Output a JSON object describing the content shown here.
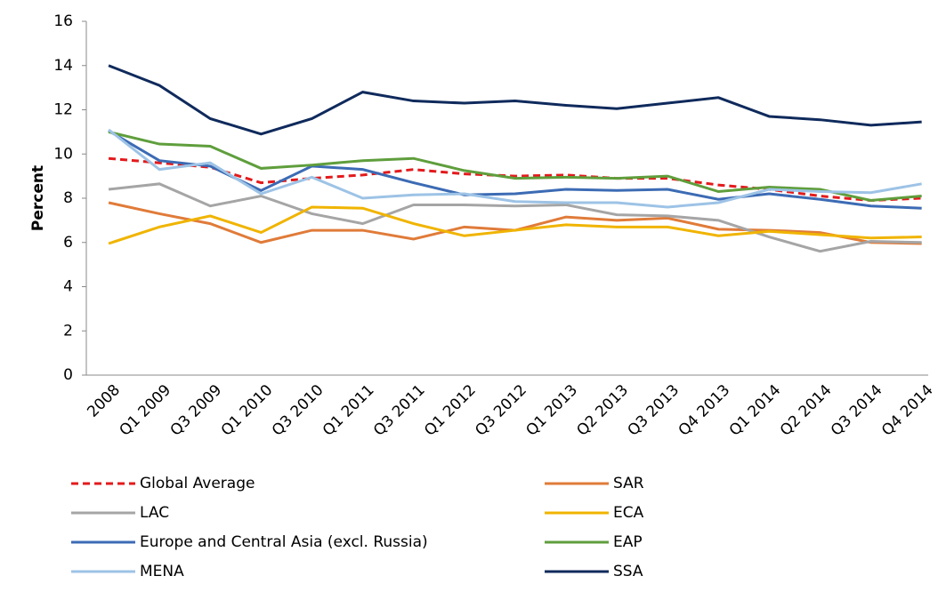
{
  "chart_data": {
    "type": "line",
    "y_label": "Percent",
    "categories": [
      "2008",
      "Q1 2009",
      "Q3 2009",
      "Q1 2010",
      "Q3 2010",
      "Q1 2011",
      "Q3 2011",
      "Q1 2012",
      "Q3 2012",
      "Q1 2013",
      "Q2 2013",
      "Q3 2013",
      "Q4 2013",
      "Q1 2014",
      "Q2 2014",
      "Q3 2014",
      "Q4 2014"
    ],
    "ylim": [
      0,
      16
    ],
    "yticks": [
      0,
      2,
      4,
      6,
      8,
      10,
      12,
      14,
      16
    ],
    "series": [
      {
        "name": "Global Average",
        "color": "#e31a1c",
        "dashed": true,
        "values": [
          9.8,
          9.6,
          9.4,
          8.7,
          8.9,
          9.05,
          9.3,
          9.1,
          9.0,
          9.05,
          8.9,
          8.9,
          8.6,
          8.4,
          8.1,
          7.9,
          8.0
        ]
      },
      {
        "name": "SAR",
        "color": "#e07b39",
        "values": [
          7.8,
          7.3,
          6.85,
          6.0,
          6.55,
          6.55,
          6.15,
          6.7,
          6.55,
          7.15,
          7.0,
          7.1,
          6.6,
          6.55,
          6.45,
          6.0,
          5.95
        ]
      },
      {
        "name": "LAC",
        "color": "#a5a5a5",
        "values": [
          8.4,
          8.65,
          7.65,
          8.1,
          7.3,
          6.85,
          7.7,
          7.7,
          7.65,
          7.7,
          7.25,
          7.2,
          7.0,
          6.25,
          5.6,
          6.05,
          6.0
        ]
      },
      {
        "name": "ECA",
        "color": "#f0b400",
        "values": [
          5.95,
          6.7,
          7.2,
          6.45,
          7.6,
          7.55,
          6.85,
          6.3,
          6.55,
          6.8,
          6.7,
          6.7,
          6.3,
          6.5,
          6.35,
          6.2,
          6.25
        ]
      },
      {
        "name": "Europe and Central Asia (excl. Russia)",
        "color": "#3c6bb4",
        "values": [
          11.05,
          9.7,
          9.45,
          8.35,
          9.45,
          9.3,
          8.7,
          8.15,
          8.2,
          8.4,
          8.35,
          8.4,
          7.95,
          8.2,
          7.95,
          7.65,
          7.55
        ]
      },
      {
        "name": "EAP",
        "color": "#5f9e3c",
        "values": [
          11.0,
          10.45,
          10.35,
          9.35,
          9.5,
          9.7,
          9.8,
          9.25,
          8.9,
          8.95,
          8.9,
          9.0,
          8.3,
          8.5,
          8.4,
          7.9,
          8.1
        ]
      },
      {
        "name": "MENA",
        "color": "#9dc3e6",
        "values": [
          11.1,
          9.3,
          9.6,
          8.2,
          8.95,
          8.0,
          8.15,
          8.2,
          7.85,
          7.8,
          7.8,
          7.6,
          7.8,
          8.4,
          8.3,
          8.25,
          8.65
        ]
      },
      {
        "name": "SSA",
        "color": "#0f2a5c",
        "values": [
          14.0,
          13.1,
          11.6,
          10.9,
          11.6,
          12.8,
          12.4,
          12.3,
          12.4,
          12.2,
          12.05,
          12.3,
          12.55,
          11.7,
          11.55,
          11.3,
          11.45
        ]
      }
    ]
  }
}
